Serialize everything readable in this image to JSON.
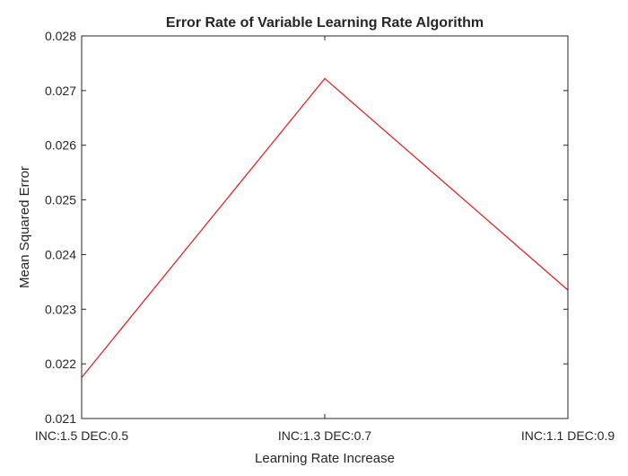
{
  "chart_data": {
    "type": "line",
    "title": "Error Rate of Variable Learning Rate Algorithm",
    "xlabel": "Learning Rate Increase",
    "ylabel": "Mean Squared Error",
    "categories": [
      "INC:1.5 DEC:0.5",
      "INC:1.3 DEC:0.7",
      "INC:1.1 DEC:0.9"
    ],
    "series": [
      {
        "values": [
          0.02175,
          0.02722,
          0.02335
        ],
        "color": "#e41a1c"
      }
    ],
    "ylim": [
      0.021,
      0.028
    ],
    "yticks": [
      "0.021",
      "0.022",
      "0.023",
      "0.024",
      "0.025",
      "0.026",
      "0.027",
      "0.028"
    ],
    "grid": false,
    "legend": "none"
  }
}
